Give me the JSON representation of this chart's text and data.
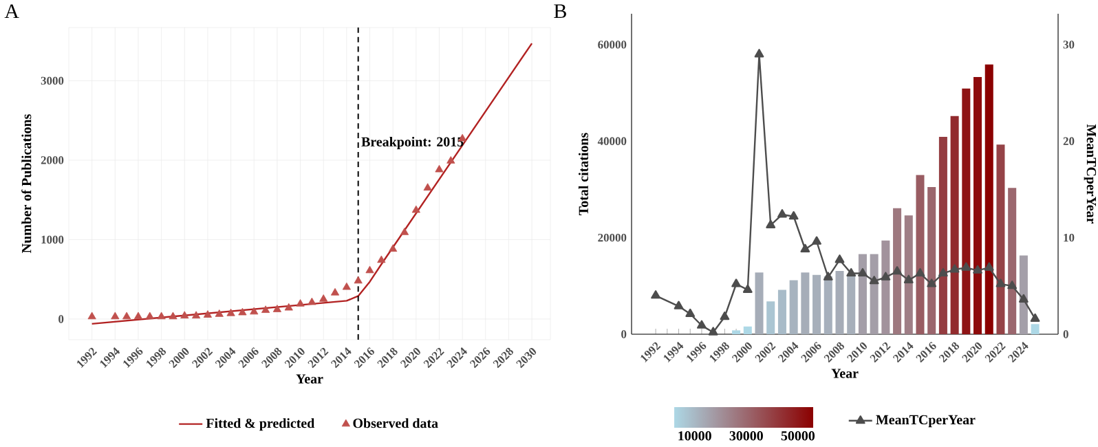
{
  "chart_data": [
    {
      "type": "line",
      "title": "A",
      "xlabel": "Year",
      "ylabel": "Number of Publications",
      "xlim": [
        1990,
        2031.6
      ],
      "ylim": [
        -260,
        3670
      ],
      "xticks": [
        1992,
        1994,
        1996,
        1998,
        2000,
        2002,
        2004,
        2006,
        2008,
        2010,
        2012,
        2014,
        2016,
        2018,
        2020,
        2022,
        2024,
        2026,
        2028,
        2030
      ],
      "yticks": [
        0,
        1000,
        2000,
        3000
      ],
      "grid": true,
      "legend": "bottom",
      "ref_lines": [
        {
          "axis": "x",
          "value": 2015,
          "label": "Breakpoint: 2015",
          "color": "#000000",
          "line_style": "dashed"
        }
      ],
      "series": [
        {
          "name": "Fitted & predicted",
          "color": "#b22222",
          "marker": "none",
          "x": [
            1992,
            2014,
            2015,
            2016,
            2017,
            2030
          ],
          "values": [
            -60,
            230,
            290,
            470,
            690,
            3470
          ]
        },
        {
          "name": "Observed data",
          "type": "scatter",
          "color": "#c0504d",
          "marker": "triangle",
          "x": [
            1992,
            1994,
            1995,
            1996,
            1997,
            1998,
            1999,
            2000,
            2001,
            2002,
            2003,
            2004,
            2005,
            2006,
            2007,
            2008,
            2009,
            2010,
            2011,
            2012,
            2013,
            2014,
            2015,
            2016,
            2017,
            2018,
            2019,
            2020,
            2021,
            2022,
            2023,
            2024
          ],
          "values": [
            30,
            30,
            30,
            30,
            30,
            30,
            30,
            40,
            40,
            50,
            60,
            70,
            80,
            90,
            110,
            120,
            140,
            190,
            210,
            250,
            330,
            400,
            480,
            610,
            740,
            880,
            1090,
            1370,
            1650,
            1880,
            1990,
            2270
          ]
        }
      ]
    },
    {
      "type": "bar",
      "title": "B",
      "xlabel": "Year",
      "ylabel": "Total citations",
      "y2label": "MeanTCperYear",
      "categories": [
        "1992",
        null,
        "1994",
        null,
        "1996",
        null,
        "1998",
        null,
        "2000",
        null,
        "2002",
        null,
        "2004",
        null,
        "2006",
        null,
        "2008",
        null,
        "2010",
        null,
        "2012",
        null,
        "2014",
        null,
        "2016",
        null,
        "2018",
        null,
        "2020",
        null,
        "2022",
        null,
        "2024",
        null
      ],
      "ylim": [
        0,
        66400
      ],
      "yticks": [
        0,
        20000,
        40000,
        60000
      ],
      "y2lim": [
        0,
        33.2
      ],
      "y2ticks": [
        0,
        10,
        20,
        30
      ],
      "clim": [
        2100,
        55900
      ],
      "cticks": [
        10000,
        30000,
        50000
      ],
      "legend": "bottom",
      "series": [
        {
          "colors": [
            "#add8e6",
            "#add8e6",
            "#add8e6",
            "#add8e6",
            "#add8e6",
            "#add8e6",
            "#add8e6",
            "#add8e6",
            "#add8e6",
            "#a6adb8",
            "#aac5d2",
            "#a8bbc8",
            "#a7b3bf",
            "#a6adb8",
            "#a7afba",
            "#a7b0bc",
            "#a6acb7",
            "#a7afba",
            "#a49ea8",
            "#a49ea8",
            "#a2929c",
            "#9e787f",
            "#9f7e86",
            "#995c62",
            "#9b666d",
            "#943c40",
            "#922b2e",
            "#8e1415",
            "#8d0a0b",
            "#8b0000",
            "#954347",
            "#9b676e",
            "#a49fa9",
            "#add8e6"
          ],
          "values": [
            0,
            0,
            null,
            0,
            0,
            0,
            0,
            800,
            1600,
            12800,
            6800,
            9200,
            11200,
            12800,
            12300,
            12000,
            13100,
            12400,
            16600,
            16600,
            19400,
            26100,
            24600,
            33000,
            30500,
            40900,
            45200,
            50900,
            53300,
            55900,
            39300,
            30300,
            16300,
            2100
          ]
        },
        {
          "type": "line",
          "name": "MeanTCperYear",
          "axis": "y2",
          "color": "#4d4d4d",
          "marker": "triangle",
          "values": [
            4.0,
            null,
            2.9,
            2.1,
            0.9,
            0.2,
            1.8,
            5.2,
            4.6,
            29.0,
            11.3,
            12.4,
            12.2,
            8.8,
            9.6,
            5.9,
            7.7,
            6.3,
            6.3,
            5.5,
            5.9,
            6.5,
            5.6,
            6.3,
            5.2,
            6.3,
            6.7,
            6.9,
            6.6,
            6.9,
            5.2,
            5.0,
            3.6,
            1.6
          ]
        }
      ]
    }
  ]
}
